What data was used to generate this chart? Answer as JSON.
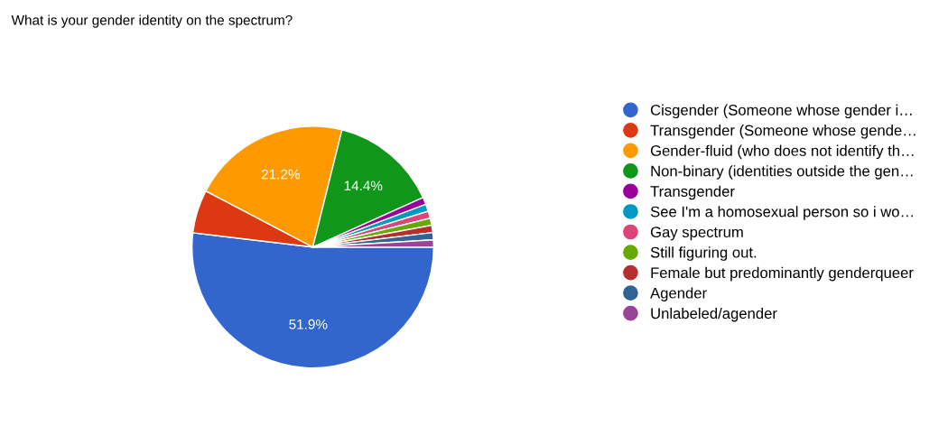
{
  "chart_data": {
    "type": "pie",
    "title": "What is your gender identity on the spectrum?",
    "categories": [
      "Cisgender (Someone whose gender i…",
      "Transgender (Someone whose gende…",
      "Gender-fluid (who does not identify th…",
      "Non-binary (identities outside the gen…",
      "Transgender",
      "See I'm a homosexual person so i wo…",
      "Gay spectrum",
      "Still figuring out.",
      "Female but predominantly genderqueer",
      "Agender",
      "Unlabeled/agender"
    ],
    "values": [
      51.9,
      5.8,
      21.2,
      14.4,
      0.96,
      0.96,
      0.96,
      0.96,
      0.96,
      0.96,
      0.96
    ],
    "value_labels": [
      "51.9%",
      null,
      "21.2%",
      "14.4%",
      null,
      null,
      null,
      null,
      null,
      null,
      null
    ],
    "colors": [
      "#3366cc",
      "#dc3912",
      "#ff9900",
      "#109618",
      "#990099",
      "#0099c6",
      "#dd4477",
      "#66aa00",
      "#b82e2e",
      "#316395",
      "#994499"
    ],
    "legend": "right"
  }
}
